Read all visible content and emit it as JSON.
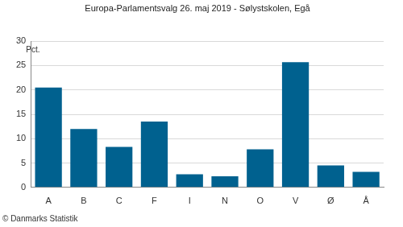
{
  "chart_data": {
    "type": "bar",
    "title": "Europa-Parlamentsvalg 26. maj 2019 - Sølystskolen, Egå",
    "y_label": "Pct.",
    "annotation": "© Danmarks Statistik",
    "categories": [
      "A",
      "B",
      "C",
      "F",
      "I",
      "N",
      "O",
      "V",
      "Ø",
      "Å"
    ],
    "values": [
      20.5,
      12.0,
      8.3,
      13.5,
      2.7,
      2.3,
      7.8,
      25.7,
      4.5,
      3.2
    ],
    "color": "#00618f",
    "ylim": [
      0,
      30
    ],
    "yticks": [
      0,
      5,
      10,
      15,
      20,
      25,
      30
    ],
    "grid": true
  }
}
